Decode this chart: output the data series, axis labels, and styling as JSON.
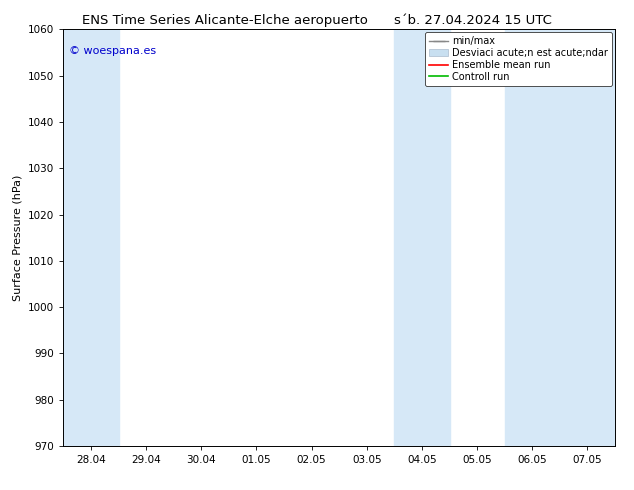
{
  "title_left": "ENS Time Series Alicante-Elche aeropuerto",
  "title_right": "s´b. 27.04.2024 15 UTC",
  "ylabel": "Surface Pressure (hPa)",
  "ylim": [
    970,
    1060
  ],
  "yticks": [
    970,
    980,
    990,
    1000,
    1010,
    1020,
    1030,
    1040,
    1050,
    1060
  ],
  "xtick_labels": [
    "28.04",
    "29.04",
    "30.04",
    "01.05",
    "02.05",
    "03.05",
    "04.05",
    "05.05",
    "06.05",
    "07.05"
  ],
  "xtick_positions": [
    0,
    1,
    2,
    3,
    4,
    5,
    6,
    7,
    8,
    9
  ],
  "xlim_start": -0.5,
  "xlim_end": 9.5,
  "shaded_bands": [
    {
      "x_start": -0.5,
      "x_end": 0.5
    },
    {
      "x_start": 5.5,
      "x_end": 6.5
    },
    {
      "x_start": 7.5,
      "x_end": 9.5
    }
  ],
  "shade_color": "#d6e8f7",
  "background_color": "#ffffff",
  "plot_bg_color": "#ffffff",
  "watermark_text": "© woespana.es",
  "watermark_color": "#0000cc",
  "legend_items": [
    {
      "label": "min/max",
      "type": "errorbar"
    },
    {
      "label": "Desviaci acute;n est acute;ndar",
      "type": "shade"
    },
    {
      "label": "Ensemble mean run",
      "type": "line",
      "color": "#ff0000"
    },
    {
      "label": "Controll run",
      "type": "line",
      "color": "#00bb00"
    }
  ],
  "title_fontsize": 9.5,
  "ylabel_fontsize": 8,
  "tick_fontsize": 7.5,
  "legend_fontsize": 7,
  "watermark_fontsize": 8
}
